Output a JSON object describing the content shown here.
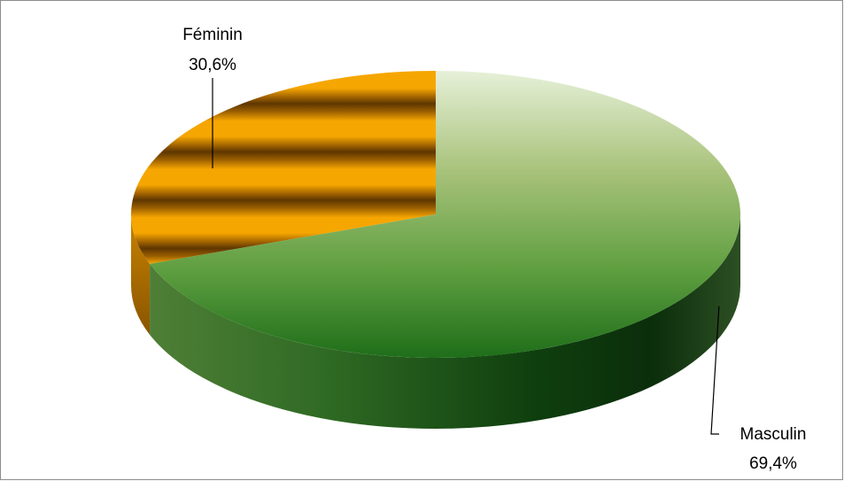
{
  "chart_data": {
    "type": "pie",
    "title": "",
    "legend": "none",
    "slices": [
      {
        "label": "Féminin",
        "value": 30.6,
        "value_label": "30,6%",
        "color": "#f0a000"
      },
      {
        "label": "Masculin",
        "value": 69.4,
        "value_label": "69,4%",
        "color": "#3c8a2a"
      }
    ]
  }
}
